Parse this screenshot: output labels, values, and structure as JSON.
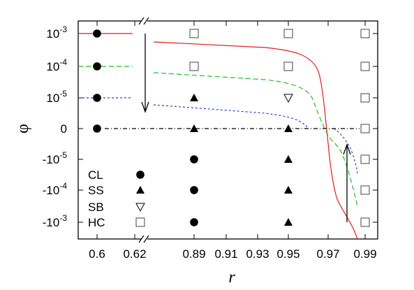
{
  "chart_data": {
    "type": "scatter",
    "title": "",
    "xlabel": "r",
    "ylabel": "φ",
    "x_ticks": [
      "0.6",
      "0.62",
      "0.89",
      "0.91",
      "0.93",
      "0.95",
      "0.97",
      "0.99"
    ],
    "y_ticks": [
      {
        "base": "10",
        "exp": "-3"
      },
      {
        "base": "10",
        "exp": "-4"
      },
      {
        "base": "10",
        "exp": "-5"
      },
      {
        "base": "0",
        "exp": ""
      },
      {
        "base": "-10",
        "exp": "-5"
      },
      {
        "base": "-10",
        "exp": "-4"
      },
      {
        "base": "-10",
        "exp": "-3"
      }
    ],
    "x_axis_break": "between 0.62 and 0.89",
    "y_scale": "symmetric log",
    "legend": {
      "position": "bottom-left",
      "entries": [
        {
          "label": "CL",
          "marker": "filled-circle"
        },
        {
          "label": "SS",
          "marker": "filled-triangle-up"
        },
        {
          "label": "SB",
          "marker": "open-triangle-down"
        },
        {
          "label": "HC",
          "marker": "open-square"
        }
      ]
    },
    "points": [
      {
        "x": 0.6,
        "y": "1e-3",
        "phase": "CL"
      },
      {
        "x": 0.6,
        "y": "1e-4",
        "phase": "CL"
      },
      {
        "x": 0.6,
        "y": "1e-5",
        "phase": "CL"
      },
      {
        "x": 0.6,
        "y": "0",
        "phase": "CL"
      },
      {
        "x": 0.9,
        "y": "1e-3",
        "phase": "HC"
      },
      {
        "x": 0.9,
        "y": "1e-4",
        "phase": "HC"
      },
      {
        "x": 0.9,
        "y": "1e-5",
        "phase": "SS"
      },
      {
        "x": 0.9,
        "y": "0",
        "phase": "SS"
      },
      {
        "x": 0.9,
        "y": "-1e-5",
        "phase": "CL"
      },
      {
        "x": 0.9,
        "y": "-1e-4",
        "phase": "CL"
      },
      {
        "x": 0.9,
        "y": "-1e-3",
        "phase": "CL"
      },
      {
        "x": 0.95,
        "y": "1e-3",
        "phase": "HC"
      },
      {
        "x": 0.95,
        "y": "1e-4",
        "phase": "HC"
      },
      {
        "x": 0.95,
        "y": "1e-5",
        "phase": "SB"
      },
      {
        "x": 0.95,
        "y": "0",
        "phase": "SS"
      },
      {
        "x": 0.95,
        "y": "-1e-5",
        "phase": "SS"
      },
      {
        "x": 0.95,
        "y": "-1e-4",
        "phase": "SS"
      },
      {
        "x": 0.95,
        "y": "-1e-3",
        "phase": "SS"
      },
      {
        "x": 0.99,
        "y": "1e-3",
        "phase": "HC"
      },
      {
        "x": 0.99,
        "y": "1e-4",
        "phase": "HC"
      },
      {
        "x": 0.99,
        "y": "1e-5",
        "phase": "HC"
      },
      {
        "x": 0.99,
        "y": "0",
        "phase": "HC"
      },
      {
        "x": 0.99,
        "y": "-1e-5",
        "phase": "HC"
      },
      {
        "x": 0.99,
        "y": "-1e-4",
        "phase": "HC"
      },
      {
        "x": 0.99,
        "y": "-1e-3",
        "phase": "HC"
      }
    ],
    "curves": [
      {
        "style": "solid",
        "color": "#e41a1c",
        "from_y": "1e-3",
        "to_y": "-1e-3"
      },
      {
        "style": "dashed",
        "color": "#19c219",
        "from_y": "1e-4",
        "to_y": "-1e-4"
      },
      {
        "style": "dotted",
        "color": "#2a3fd8",
        "from_y": "1e-5",
        "to_y": "-1e-5"
      },
      {
        "style": "dash-dot",
        "color": "#000000",
        "y": "0"
      }
    ],
    "arrows": [
      {
        "direction": "down",
        "x_near": 0.62
      },
      {
        "direction": "up",
        "x_near": 0.978
      }
    ]
  }
}
